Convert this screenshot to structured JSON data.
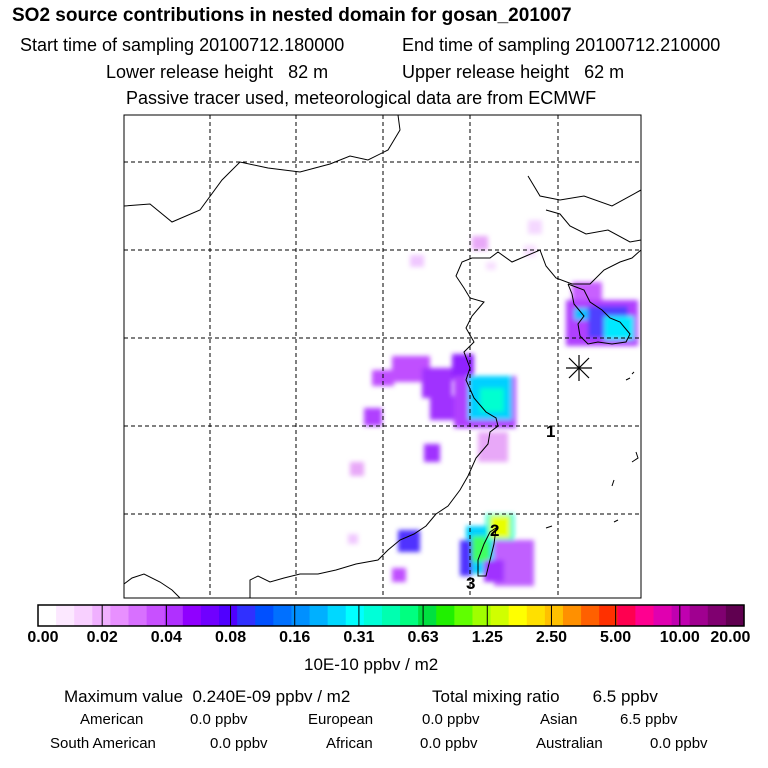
{
  "header": {
    "title": "SO2 source contributions in nested domain for gosan_201007",
    "start_label": "Start time of sampling 20100712.180000",
    "end_label": "End time of sampling 20100712.210000",
    "lower_label": "Lower release height   82 m",
    "upper_label": "Upper release height   62 m",
    "tracer_note": "Passive tracer used, meteorological data are from ECMWF"
  },
  "map": {
    "site_markers": [
      "1",
      "2",
      "3"
    ]
  },
  "colorbar": {
    "colors": [
      "#ffffff",
      "#fce8ff",
      "#f8d0ff",
      "#f0b0ff",
      "#e890ff",
      "#d870ff",
      "#c850ff",
      "#b030ff",
      "#9000ff",
      "#7000ff",
      "#5000ff",
      "#3030ff",
      "#0050ff",
      "#0070ff",
      "#0090ff",
      "#00b0ff",
      "#00d8ff",
      "#00ffff",
      "#00ffd8",
      "#00ffb0",
      "#00ff80",
      "#00e040",
      "#20f000",
      "#60ff00",
      "#a0ff00",
      "#d0ff00",
      "#ffff00",
      "#ffe000",
      "#ffc000",
      "#ff9000",
      "#ff6000",
      "#ff3000",
      "#ff0050",
      "#ff0090",
      "#e000b0",
      "#c000b0",
      "#a00090",
      "#800070",
      "#600050"
    ],
    "tick_labels": [
      "0.00",
      "0.02",
      "0.04",
      "0.08",
      "0.16",
      "0.31",
      "0.63",
      "1.25",
      "2.50",
      "5.00",
      "10.00",
      "20.00"
    ],
    "unit_label": "10E-10 ppbv / m2"
  },
  "stats": {
    "max_value": "Maximum value  0.240E-09 ppbv / m2",
    "total_mixing": "Total mixing ratio       6.5 ppbv",
    "regions": [
      {
        "name": "American",
        "value": "0.0 ppbv"
      },
      {
        "name": "European",
        "value": "0.0 ppbv"
      },
      {
        "name": "Asian",
        "value": "6.5 ppbv"
      },
      {
        "name": "South American",
        "value": "0.0 ppbv"
      },
      {
        "name": "African",
        "value": "0.0 ppbv"
      },
      {
        "name": "Australian",
        "value": "0.0 ppbv"
      }
    ]
  }
}
